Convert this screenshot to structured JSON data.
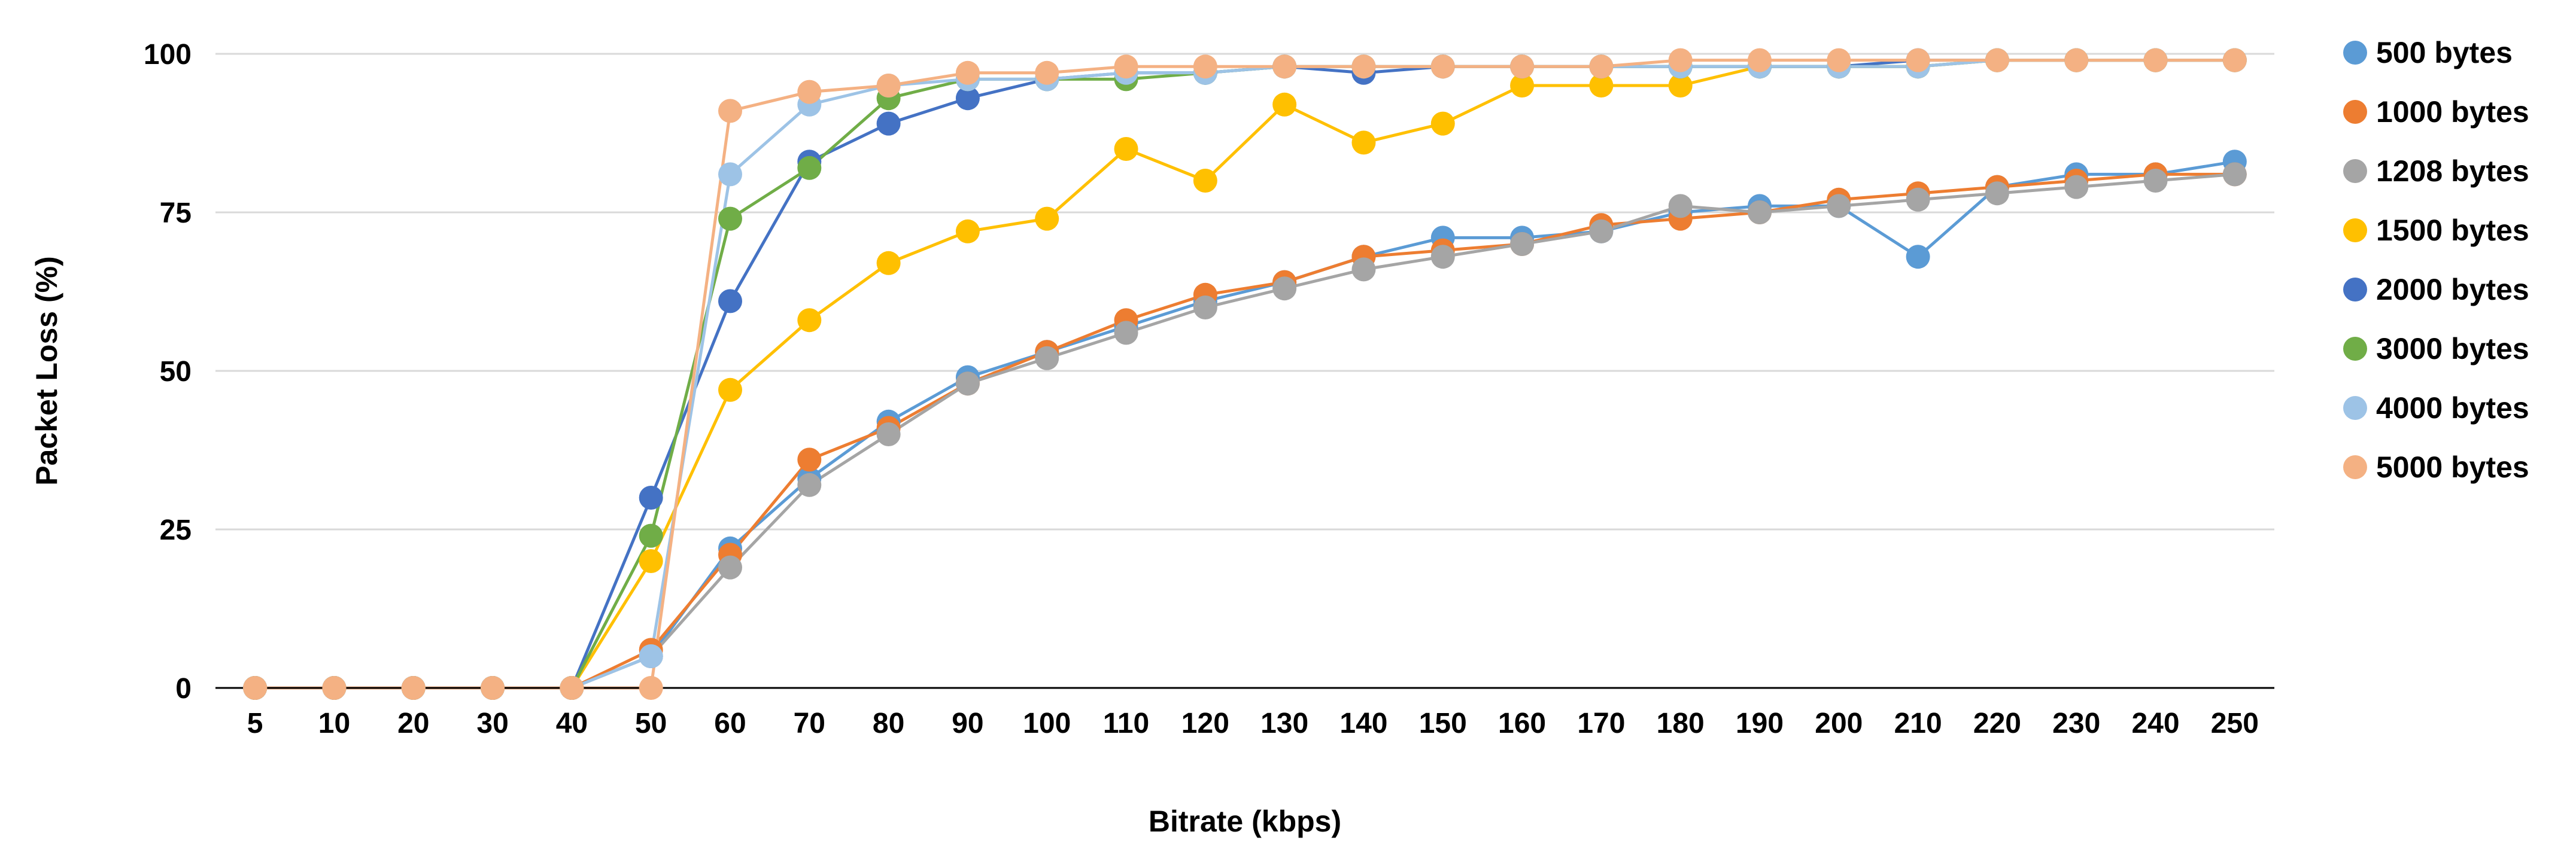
{
  "chart_data": {
    "type": "line",
    "title": "",
    "xlabel": "Bitrate (kbps)",
    "ylabel": "Packet Loss (%)",
    "categories": [
      "5",
      "10",
      "20",
      "30",
      "40",
      "50",
      "60",
      "70",
      "80",
      "90",
      "100",
      "110",
      "120",
      "130",
      "140",
      "150",
      "160",
      "170",
      "180",
      "190",
      "200",
      "210",
      "220",
      "230",
      "240",
      "250"
    ],
    "ylim": [
      0,
      100
    ],
    "yticks": [
      0,
      25,
      50,
      75,
      100
    ],
    "grid": true,
    "legend_position": "right",
    "series": [
      {
        "name": "500 bytes",
        "color": "#5B9BD5",
        "values": [
          0,
          0,
          0,
          0,
          0,
          5,
          22,
          33,
          42,
          49,
          53,
          57,
          61,
          64,
          68,
          71,
          71,
          72,
          75,
          76,
          76,
          68,
          79,
          81,
          81,
          83
        ]
      },
      {
        "name": "1000 bytes",
        "color": "#ED7D31",
        "values": [
          0,
          0,
          0,
          0,
          0,
          6,
          21,
          36,
          41,
          48,
          53,
          58,
          62,
          64,
          68,
          69,
          70,
          73,
          74,
          75,
          77,
          78,
          79,
          80,
          81,
          81
        ]
      },
      {
        "name": "1208 bytes",
        "color": "#A5A5A5",
        "values": [
          0,
          0,
          0,
          0,
          0,
          5,
          19,
          32,
          40,
          48,
          52,
          56,
          60,
          63,
          66,
          68,
          70,
          72,
          76,
          75,
          76,
          77,
          78,
          79,
          80,
          81
        ]
      },
      {
        "name": "1500 bytes",
        "color": "#FFC000",
        "values": [
          0,
          0,
          0,
          0,
          0,
          20,
          47,
          58,
          67,
          72,
          74,
          85,
          80,
          92,
          86,
          89,
          95,
          95,
          95,
          98,
          98,
          98,
          99,
          99,
          99,
          99
        ]
      },
      {
        "name": "2000 bytes",
        "color": "#4472C4",
        "values": [
          0,
          0,
          0,
          0,
          0,
          30,
          61,
          83,
          89,
          93,
          96,
          97,
          97,
          98,
          97,
          98,
          98,
          98,
          98,
          98,
          98,
          99,
          99,
          99,
          99,
          99
        ]
      },
      {
        "name": "3000 bytes",
        "color": "#70AD47",
        "values": [
          0,
          0,
          0,
          0,
          0,
          24,
          74,
          82,
          93,
          96,
          96,
          96,
          97,
          98,
          98,
          98,
          98,
          98,
          98,
          98,
          98,
          98,
          99,
          99,
          99,
          99
        ]
      },
      {
        "name": "4000 bytes",
        "color": "#9DC3E6",
        "values": [
          0,
          0,
          0,
          0,
          0,
          5,
          81,
          92,
          95,
          96,
          96,
          97,
          97,
          98,
          98,
          98,
          98,
          98,
          98,
          98,
          98,
          98,
          99,
          99,
          99,
          99
        ]
      },
      {
        "name": "5000 bytes",
        "color": "#F4B183",
        "values": [
          0,
          0,
          0,
          0,
          0,
          0,
          91,
          94,
          95,
          97,
          97,
          98,
          98,
          98,
          98,
          98,
          98,
          98,
          99,
          99,
          99,
          99,
          99,
          99,
          99,
          99
        ]
      }
    ]
  }
}
